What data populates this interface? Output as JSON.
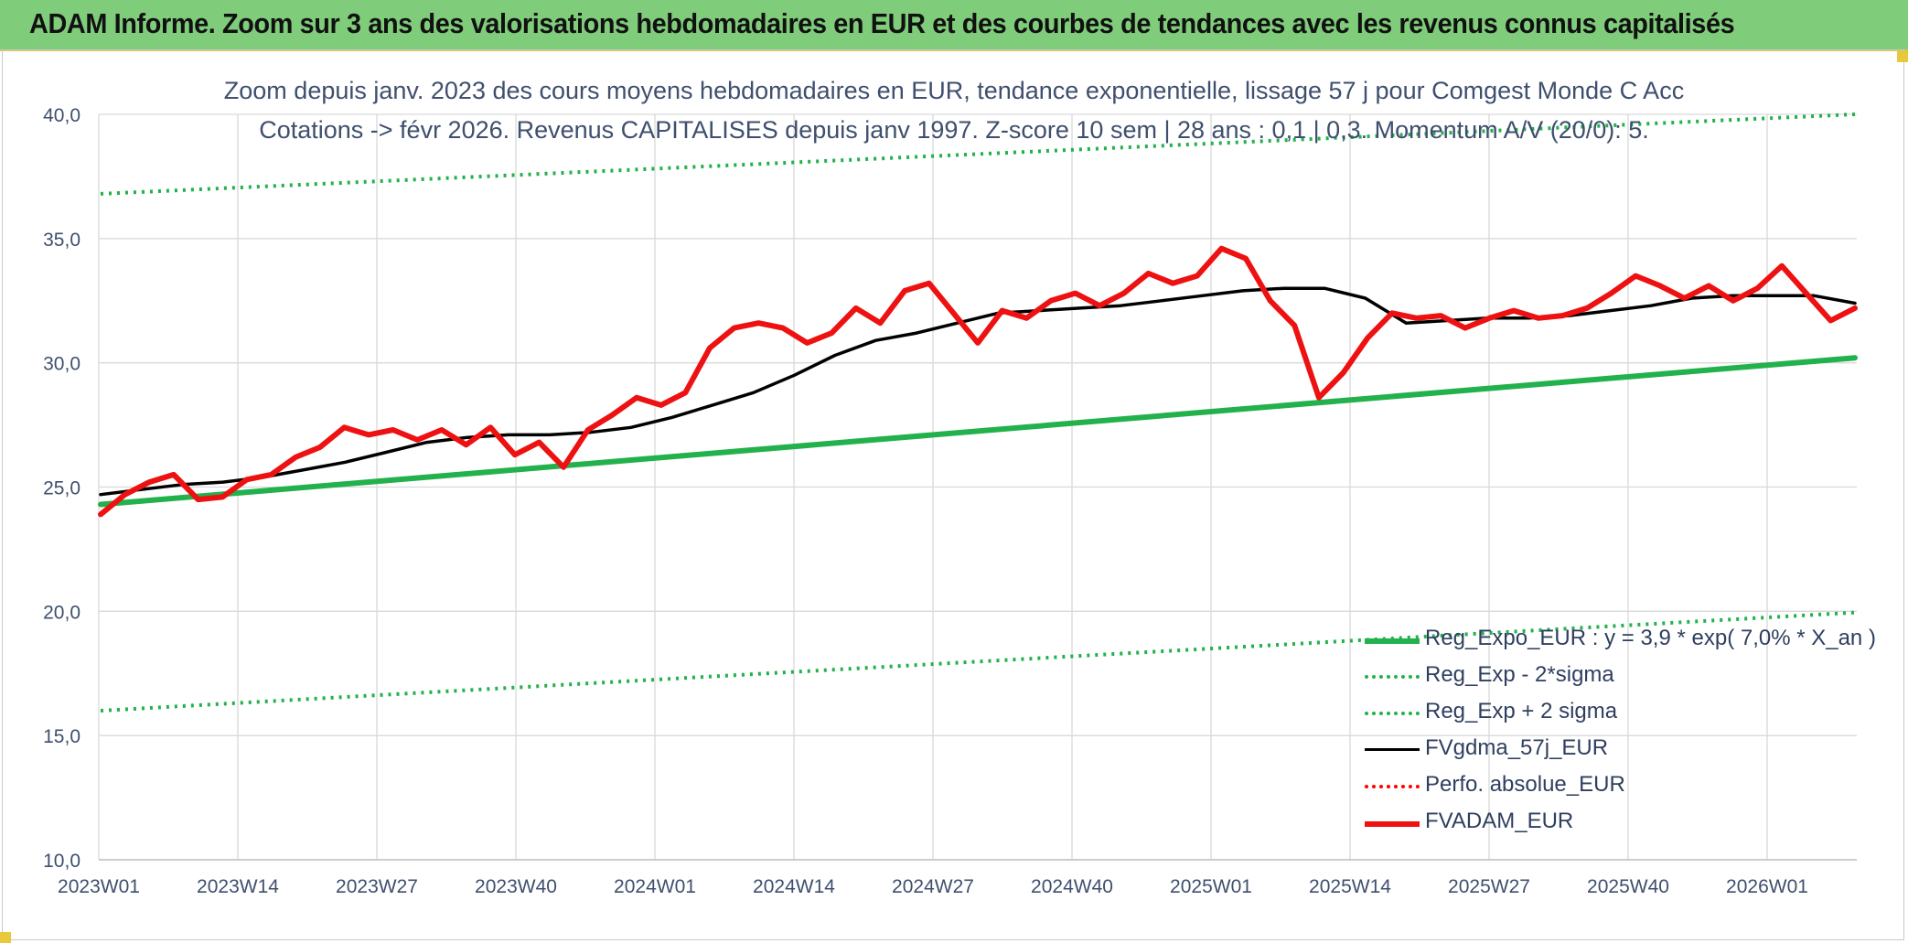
{
  "header": {
    "title": "ADAM Informe. Zoom sur 3 ans des valorisations hebdomadaires en EUR et des courbes de tendances avec les revenus connus capitalisés"
  },
  "chart_data": {
    "type": "line",
    "subtitle_line1": "Zoom depuis janv. 2023 des cours moyens hebdomadaires en EUR, tendance exponentielle, lissage 57 j pour Comgest Monde C Acc",
    "subtitle_line2": "Cotations -> févr 2026. Revenus CAPITALISES depuis janv 1997. Z-score 10 sem | 28 ans : 0,1 | 0,3. Momentum A/V (20/0): 5.",
    "x_tick_labels": [
      "2023W01",
      "2023W14",
      "2023W27",
      "2023W40",
      "2024W01",
      "2024W14",
      "2024W27",
      "2024W40",
      "2025W01",
      "2025W14",
      "2025W27",
      "2025W40",
      "2026W01"
    ],
    "y_tick_labels": [
      "10,0",
      "15,0",
      "20,0",
      "25,0",
      "30,0",
      "35,0",
      "40,0"
    ],
    "ylim": [
      10,
      40
    ],
    "grid": true,
    "legend_position": "bottom-right",
    "series": [
      {
        "name": "Reg_Expo_EUR : y = 3,9 * exp( 7,0% *  X_an )",
        "color": "#22b14c",
        "style": "solid-thick",
        "values": [
          24.3,
          30.2
        ]
      },
      {
        "name": "Reg_Exp - 2*sigma",
        "color": "#22b14c",
        "style": "dotted",
        "values": [
          16.0,
          19.95
        ]
      },
      {
        "name": "Reg_Exp + 2 sigma",
        "color": "#22b14c",
        "style": "dotted",
        "values": [
          36.8,
          40.0
        ]
      },
      {
        "name": "FVgdma_57j_EUR",
        "color": "#000000",
        "style": "solid",
        "values": [
          24.7,
          24.9,
          25.1,
          25.2,
          25.4,
          25.7,
          26.0,
          26.4,
          26.8,
          27.0,
          27.1,
          27.1,
          27.2,
          27.4,
          27.8,
          28.3,
          28.8,
          29.5,
          30.3,
          30.9,
          31.2,
          31.6,
          32.0,
          32.1,
          32.2,
          32.3,
          32.5,
          32.7,
          32.9,
          33.0,
          33.0,
          32.6,
          31.6,
          31.7,
          31.8,
          31.8,
          31.9,
          32.1,
          32.3,
          32.6,
          32.7,
          32.7,
          32.7,
          32.4
        ]
      },
      {
        "name": "Perfo. absolue_EUR",
        "color": "#ff0000",
        "style": "dotted",
        "values": []
      },
      {
        "name": "FVADAM_EUR",
        "color": "#ee1111",
        "style": "solid-thick",
        "values": [
          23.9,
          24.7,
          25.2,
          25.5,
          24.5,
          24.6,
          25.3,
          25.5,
          26.2,
          26.6,
          27.4,
          27.1,
          27.3,
          26.9,
          27.3,
          26.7,
          27.4,
          26.3,
          26.8,
          25.8,
          27.3,
          27.9,
          28.6,
          28.3,
          28.8,
          30.6,
          31.4,
          31.6,
          31.4,
          30.8,
          31.2,
          32.2,
          31.6,
          32.9,
          33.2,
          32.0,
          30.8,
          32.1,
          31.8,
          32.5,
          32.8,
          32.3,
          32.8,
          33.6,
          33.2,
          33.5,
          34.6,
          34.2,
          32.5,
          31.5,
          28.6,
          29.6,
          31.0,
          32.0,
          31.8,
          31.9,
          31.4,
          31.8,
          32.1,
          31.8,
          31.9,
          32.2,
          32.8,
          33.5,
          33.1,
          32.6,
          33.1,
          32.5,
          33.0,
          33.9,
          32.8,
          31.7,
          32.2
        ]
      }
    ]
  }
}
